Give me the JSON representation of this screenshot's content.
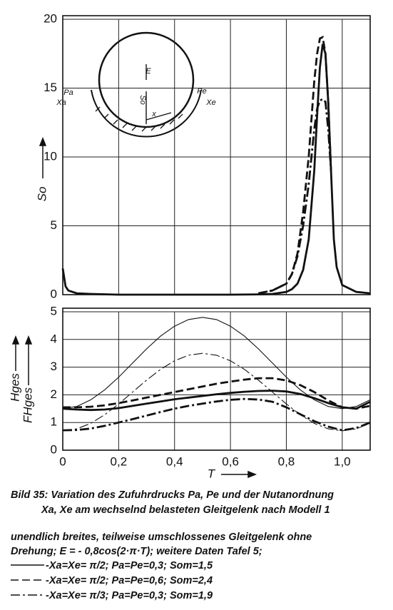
{
  "chart_data": [
    {
      "type": "line",
      "ylabel": "So",
      "annotations": [
        "E",
        "So",
        "x",
        "Pa",
        "Xa",
        "Pe",
        "Xe"
      ],
      "x": [
        0,
        0.01,
        0.02,
        0.05,
        0.1,
        0.2,
        0.3,
        0.4,
        0.5,
        0.6,
        0.7,
        0.75,
        0.8,
        0.82,
        0.84,
        0.86,
        0.88,
        0.9,
        0.91,
        0.92,
        0.93,
        0.94,
        0.95,
        0.96,
        0.97,
        0.98,
        1.0,
        1.05,
        1.1
      ],
      "xlim": [
        0,
        1.1
      ],
      "xgrid": [
        0,
        0.2,
        0.4,
        0.6,
        0.8,
        1.0
      ],
      "ylim": [
        0,
        20
      ],
      "yticks": [
        0,
        5,
        10,
        15,
        20
      ],
      "grid": true,
      "series": [
        {
          "name": "-Xa=Xe= π/2; Pa=Pe=0,3; Som=1,5",
          "style": "solid",
          "weight": "thick",
          "color": "#111",
          "values": [
            1.9,
            0.6,
            0.3,
            0.1,
            0.05,
            0,
            0,
            0,
            0,
            0,
            0.02,
            0.05,
            0.2,
            0.4,
            0.8,
            1.8,
            4,
            9,
            13,
            16.5,
            18.2,
            17.5,
            14,
            9,
            4,
            2,
            0.7,
            0.2,
            0.1
          ]
        },
        {
          "name": "-Xa=Xe= π/2; Pa=Pe=0,6; Som=2,4",
          "style": "dashed",
          "weight": "thick",
          "color": "#111",
          "values": [
            null,
            null,
            null,
            null,
            null,
            null,
            null,
            null,
            null,
            null,
            0.1,
            0.3,
            0.8,
            1.5,
            3,
            6,
            10,
            15.5,
            17.5,
            18.6,
            18.7,
            17.5,
            14,
            9,
            null,
            null,
            null,
            null,
            null
          ]
        },
        {
          "name": "-Xa=Xe= π/3; Pa=Pe=0,3; Som=1,9",
          "style": "dashdot",
          "weight": "thick",
          "color": "#111",
          "values": [
            null,
            null,
            null,
            null,
            null,
            null,
            null,
            null,
            null,
            null,
            0.1,
            0.3,
            0.8,
            1.5,
            2.8,
            5,
            8,
            12,
            13.5,
            14.1,
            14.2,
            14,
            12,
            9,
            null,
            null,
            null,
            null,
            null
          ]
        }
      ]
    },
    {
      "type": "line",
      "ylabel": [
        "Hges",
        "FHges"
      ],
      "xlabel": "T",
      "x": [
        0,
        0.05,
        0.1,
        0.15,
        0.2,
        0.25,
        0.3,
        0.35,
        0.4,
        0.45,
        0.5,
        0.55,
        0.6,
        0.65,
        0.7,
        0.75,
        0.8,
        0.85,
        0.9,
        0.95,
        1.0,
        1.05,
        1.1
      ],
      "xlim": [
        0,
        1.1
      ],
      "xticks": [
        0,
        {
          "value": 0.2,
          "label": "0,2"
        },
        {
          "value": 0.4,
          "label": "0,4"
        },
        {
          "value": 0.6,
          "label": "0,6"
        },
        {
          "value": 0.8,
          "label": "0,8"
        },
        {
          "value": 1.0,
          "label": "1,0"
        }
      ],
      "ylim": [
        0,
        5
      ],
      "yticks": [
        0,
        1,
        2,
        3,
        4,
        5
      ],
      "grid": true,
      "series": [
        {
          "style": "solid",
          "weight": "thin",
          "color": "#111",
          "values": [
            1.5,
            1.58,
            1.82,
            2.18,
            2.64,
            3.15,
            3.66,
            4.12,
            4.48,
            4.72,
            4.8,
            4.72,
            4.48,
            4.12,
            3.66,
            3.15,
            2.64,
            2.18,
            1.82,
            1.58,
            1.5,
            1.58,
            1.82
          ]
        },
        {
          "style": "dashdot",
          "weight": "thin",
          "color": "#111",
          "values": [
            0.7,
            0.77,
            0.97,
            1.28,
            1.67,
            2.1,
            2.53,
            2.92,
            3.23,
            3.43,
            3.5,
            3.43,
            3.23,
            2.92,
            2.53,
            2.1,
            1.67,
            1.28,
            0.97,
            0.77,
            0.7,
            0.77,
            0.97
          ]
        },
        {
          "style": "solid",
          "weight": "thick",
          "color": "#111",
          "values": [
            1.5,
            1.47,
            1.45,
            1.47,
            1.52,
            1.6,
            1.68,
            1.76,
            1.84,
            1.9,
            1.96,
            2.02,
            2.07,
            2.11,
            2.14,
            2.15,
            2.12,
            2.03,
            1.88,
            1.7,
            1.55,
            1.5,
            1.75
          ]
        },
        {
          "style": "dashed",
          "weight": "thick",
          "color": "#111",
          "values": [
            1.55,
            1.55,
            1.57,
            1.62,
            1.7,
            1.8,
            1.9,
            2.0,
            2.1,
            2.2,
            2.3,
            2.4,
            2.48,
            2.55,
            2.6,
            2.6,
            2.52,
            2.35,
            2.1,
            1.8,
            1.55,
            1.5,
            1.6
          ]
        },
        {
          "style": "dashdot",
          "weight": "thick",
          "color": "#111",
          "values": [
            0.72,
            0.73,
            0.78,
            0.88,
            1.0,
            1.12,
            1.25,
            1.38,
            1.5,
            1.6,
            1.68,
            1.76,
            1.82,
            1.85,
            1.83,
            1.75,
            1.55,
            1.3,
            1.05,
            0.85,
            0.72,
            0.8,
            1.0
          ]
        }
      ]
    }
  ],
  "caption": [
    "Bild 35: Variation des Zufuhrdrucks Pa, Pe und der Nutanordnung",
    "Xa, Xe am wechselnd belasteten Gleitgelenk nach Modell 1"
  ],
  "description": [
    "unendlich breites, teilweise umschlossenes Gleitgelenk ohne",
    "Drehung; E = - 0,8cos(2·π·T); weitere Daten Tafel 5;"
  ]
}
